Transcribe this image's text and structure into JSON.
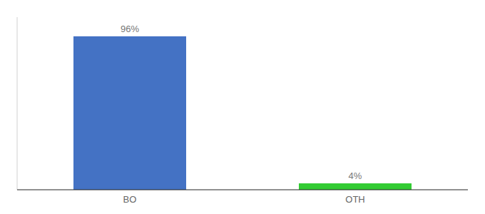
{
  "chart_data": {
    "type": "bar",
    "categories": [
      "BO",
      "OTH"
    ],
    "values": [
      96,
      4
    ],
    "value_labels": [
      "96%",
      "4%"
    ],
    "colors": [
      "#4472c4",
      "#33cc33"
    ],
    "ylim": [
      0,
      108
    ],
    "grid": false,
    "data_labels": true,
    "tick_labels": "x"
  }
}
